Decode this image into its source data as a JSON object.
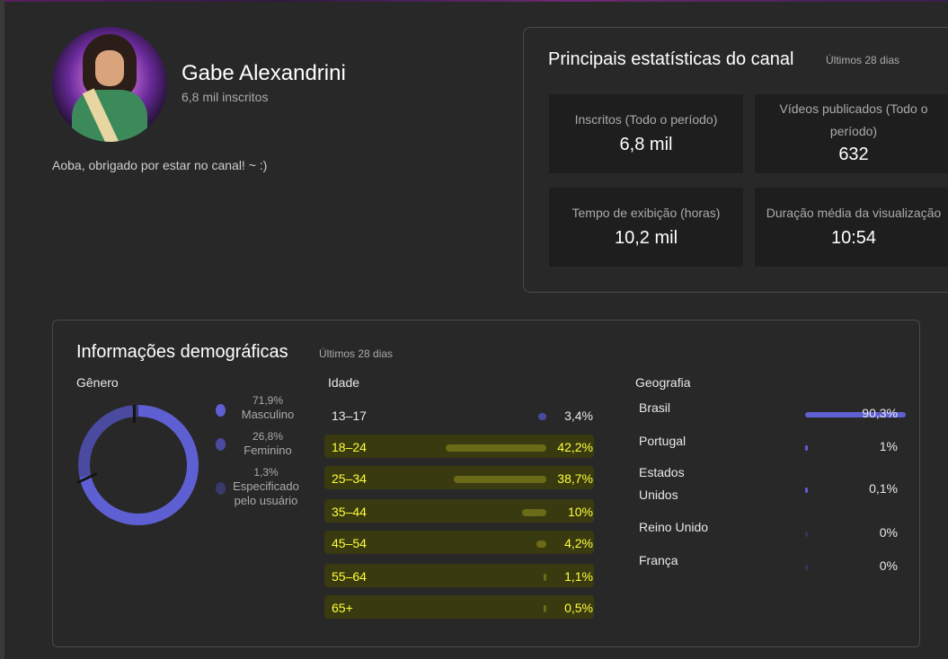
{
  "profile": {
    "name": "Gabe Alexandrini",
    "subscribers": "6,8 mil inscritos",
    "description": "Aoba, obrigado por estar no canal! ~ :)"
  },
  "stats": {
    "title": "Principais estatísticas do canal",
    "period": "Últimos 28 dias",
    "items": [
      {
        "label": "Inscritos (Todo o período)",
        "value": "6,8 mil"
      },
      {
        "label": "Vídeos publicados (Todo o período)",
        "value": "632"
      },
      {
        "label": "Tempo de exibição (horas)",
        "value": "10,2 mil"
      },
      {
        "label": "Duração média da visualização",
        "value": "10:54"
      }
    ]
  },
  "demographics": {
    "title": "Informações demográficas",
    "period": "Últimos 28 dias",
    "gender": {
      "title": "Gênero",
      "items": [
        {
          "pct": "71,9%",
          "label": "Masculino",
          "value": 71.9,
          "color": "#5f5fd4"
        },
        {
          "pct": "26,8%",
          "label": "Feminino",
          "value": 26.8,
          "color": "#4a4aa0"
        },
        {
          "pct": "1,3%",
          "label": "Especificado pelo usuário",
          "value": 1.3,
          "color": "#3a3a6a"
        }
      ]
    },
    "age": {
      "title": "Idade",
      "highlight_color": "#ffff3a",
      "items": [
        {
          "label": "13–17",
          "pct": "3,4%",
          "value": 3.4,
          "highlighted": false
        },
        {
          "label": "18–24",
          "pct": "42,2%",
          "value": 42.2,
          "highlighted": true
        },
        {
          "label": "25–34",
          "pct": "38,7%",
          "value": 38.7,
          "highlighted": true
        },
        {
          "label": "35–44",
          "pct": "10%",
          "value": 10,
          "highlighted": true
        },
        {
          "label": "45–54",
          "pct": "4,2%",
          "value": 4.2,
          "highlighted": true
        },
        {
          "label": "55–64",
          "pct": "1,1%",
          "value": 1.1,
          "highlighted": true
        },
        {
          "label": "65+",
          "pct": "0,5%",
          "value": 0.5,
          "highlighted": true
        }
      ]
    },
    "geo": {
      "title": "Geografia",
      "items": [
        {
          "label": "Brasil",
          "pct": "90,3%",
          "value": 90.3
        },
        {
          "label": "Portugal",
          "pct": "1%",
          "value": 1
        },
        {
          "label": "Estados Unidos",
          "pct": "0,1%",
          "value": 0.1
        },
        {
          "label": "Reino Unido",
          "pct": "0%",
          "value": 0
        },
        {
          "label": "França",
          "pct": "0%",
          "value": 0
        }
      ]
    }
  }
}
